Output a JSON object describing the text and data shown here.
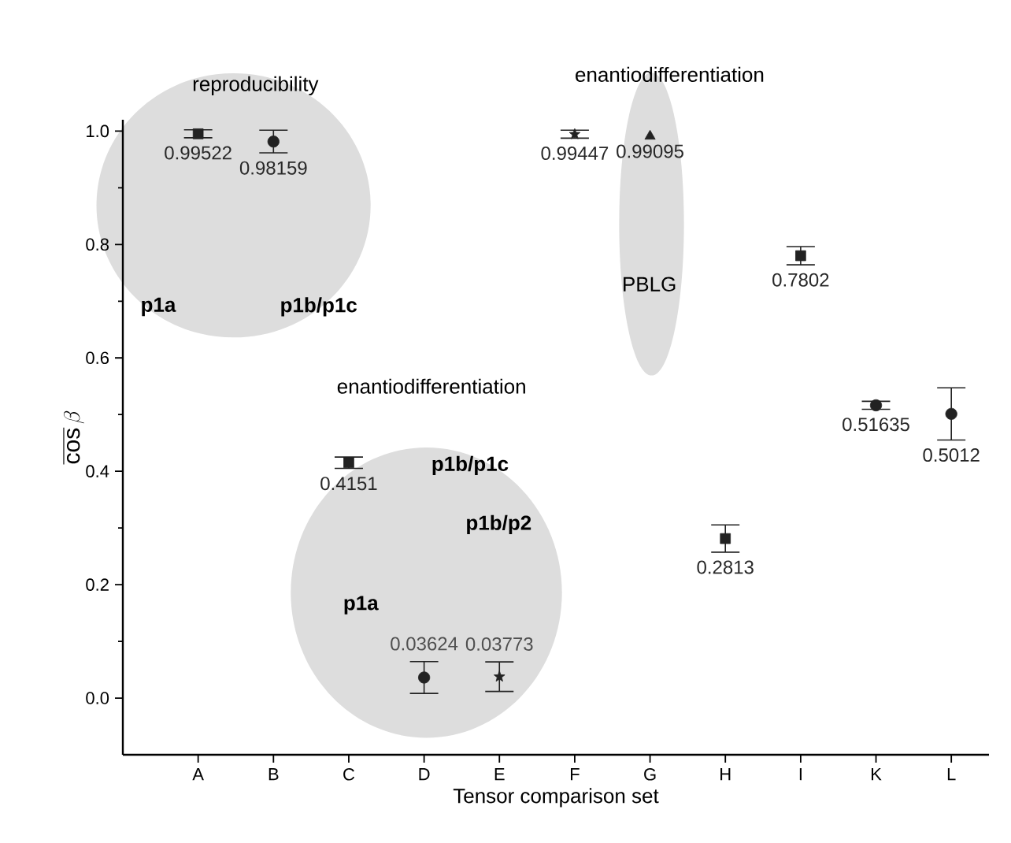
{
  "chart_data": {
    "type": "scatter",
    "xlabel": "Tensor comparison set",
    "ylabel": "\\overline{\\cos}\\,\\beta",
    "categories": [
      "A",
      "B",
      "C",
      "D",
      "E",
      "F",
      "G",
      "H",
      "I",
      "K",
      "L"
    ],
    "ylim": [
      -0.1,
      1.02
    ],
    "yticks": [
      {
        "value": 0,
        "label": "0.0"
      },
      {
        "value": 0.2,
        "label": "0.2"
      },
      {
        "value": 0.4,
        "label": "0.4"
      },
      {
        "value": 0.6,
        "label": "0.6"
      },
      {
        "value": 0.8,
        "label": "0.8"
      },
      {
        "value": 1.0,
        "label": "1.0"
      }
    ],
    "grid": false,
    "series": [
      {
        "marker": "square",
        "color": "#222222",
        "values": [
          0.99522,
          null,
          0.4151,
          null,
          null,
          null,
          null,
          0.2813,
          0.7802,
          null,
          null
        ],
        "errors": [
          0.007,
          null,
          0.01,
          null,
          null,
          null,
          null,
          0.024,
          0.016,
          null,
          null
        ],
        "value_labels": [
          "0.99522",
          null,
          "0.4151",
          null,
          null,
          null,
          null,
          "0.2813",
          "0.7802",
          null,
          null
        ]
      },
      {
        "marker": "circle",
        "color": "#222222",
        "values": [
          null,
          0.98159,
          null,
          0.03624,
          null,
          null,
          null,
          null,
          null,
          0.51635,
          0.5012
        ],
        "errors": [
          null,
          0.02,
          null,
          0.028,
          null,
          null,
          null,
          null,
          null,
          0.007,
          0.046
        ],
        "value_labels": [
          null,
          "0.98159",
          null,
          "0.03624",
          null,
          null,
          null,
          null,
          null,
          "0.51635",
          "0.5012"
        ]
      },
      {
        "marker": "star",
        "color": "#222222",
        "values": [
          null,
          null,
          null,
          null,
          0.03773,
          0.99447,
          null,
          null,
          null,
          null,
          null
        ],
        "errors": [
          null,
          null,
          null,
          null,
          0.026,
          0.007,
          null,
          null,
          null,
          null,
          null
        ],
        "value_labels": [
          null,
          null,
          null,
          null,
          "0.03773",
          "0.99447",
          null,
          null,
          null,
          null,
          null
        ]
      },
      {
        "marker": "triangle",
        "color": "#222222",
        "values": [
          null,
          null,
          null,
          null,
          null,
          null,
          0.99095,
          null,
          null,
          null,
          null
        ],
        "value_labels": [
          null,
          null,
          null,
          null,
          null,
          null,
          "0.99095",
          null,
          null,
          null,
          null
        ]
      }
    ],
    "annotations": [
      "reproducibility",
      "p1a",
      "p1b/p1c",
      "enantiodifferentiation",
      "PBLG",
      "enantiodifferentiation",
      "p1b/p1c",
      "p1b/p2",
      "p1a"
    ]
  }
}
